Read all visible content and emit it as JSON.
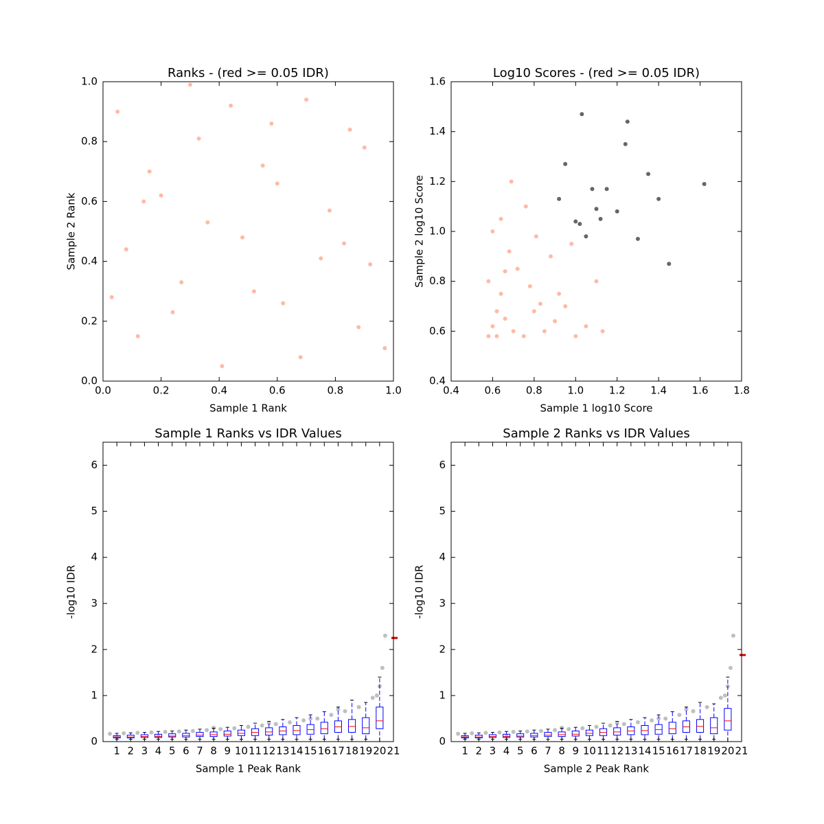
{
  "chart_data": [
    {
      "type": "scatter",
      "title": "Ranks - (red >= 0.05 IDR)",
      "xlabel": "Sample 1 Rank",
      "ylabel": "Sample 2 Rank",
      "xlim": [
        0,
        1
      ],
      "ylim": [
        0,
        1
      ],
      "xticks": [
        {
          "value": 0,
          "label": "0.0"
        },
        0.2,
        0.4,
        0.6,
        0.8,
        {
          "value": 1,
          "label": "1.0"
        }
      ],
      "yticks": [
        {
          "value": 0,
          "label": "0.0"
        },
        0.2,
        0.4,
        0.6,
        0.8,
        {
          "value": 1,
          "label": "1.0"
        }
      ],
      "series": [
        {
          "color": "#ff8c69",
          "x": [
            0.05,
            0.12,
            0.2,
            0.27,
            0.33,
            0.41,
            0.48,
            0.55,
            0.62,
            0.7,
            0.78,
            0.85,
            0.92,
            0.97,
            0.08,
            0.16,
            0.24,
            0.36,
            0.44,
            0.52,
            0.6,
            0.68,
            0.75,
            0.83,
            0.9,
            0.03,
            0.3,
            0.58,
            0.88,
            0.14
          ],
          "values": [
            0.9,
            0.15,
            0.62,
            0.33,
            0.81,
            0.05,
            0.48,
            0.72,
            0.26,
            0.94,
            0.57,
            0.84,
            0.39,
            0.11,
            0.44,
            0.7,
            0.23,
            0.53,
            0.92,
            0.3,
            0.66,
            0.08,
            0.41,
            0.46,
            0.78,
            0.28,
            0.99,
            0.86,
            0.18,
            0.6
          ]
        }
      ]
    },
    {
      "type": "scatter",
      "title": "Log10 Scores - (red >= 0.05 IDR)",
      "xlabel": "Sample 1 log10 Score",
      "ylabel": "Sample 2 log10 Score",
      "xlim": [
        0.4,
        1.8
      ],
      "ylim": [
        0.4,
        1.6
      ],
      "xticks": [
        0.4,
        0.6,
        0.8,
        {
          "value": 1,
          "label": "1.0"
        },
        1.2,
        1.4,
        1.6,
        1.8
      ],
      "yticks": [
        0.4,
        0.6,
        0.8,
        {
          "value": 1,
          "label": "1.0"
        },
        1.2,
        1.4,
        1.6
      ],
      "series": [
        {
          "color": "#ff8c69",
          "x": [
            0.58,
            0.6,
            0.62,
            0.64,
            0.66,
            0.68,
            0.58,
            0.62,
            0.66,
            0.7,
            0.75,
            0.8,
            0.85,
            0.9,
            0.72,
            0.78,
            0.83,
            0.6,
            0.64,
            0.88,
            0.95,
            1.0,
            1.05,
            1.1,
            0.98,
            0.76,
            0.69,
            0.81,
            0.92,
            1.13
          ],
          "values": [
            0.58,
            0.62,
            0.68,
            0.75,
            0.84,
            0.92,
            0.8,
            0.58,
            0.65,
            0.6,
            0.58,
            0.68,
            0.6,
            0.64,
            0.85,
            0.78,
            0.71,
            1.0,
            1.05,
            0.9,
            0.7,
            0.58,
            0.62,
            0.8,
            0.95,
            1.1,
            1.2,
            0.98,
            0.75,
            0.6
          ]
        },
        {
          "color": "#000000",
          "x": [
            0.92,
            0.95,
            1.0,
            1.03,
            1.05,
            1.08,
            1.12,
            1.15,
            1.2,
            1.25,
            1.3,
            1.35,
            1.4,
            1.45,
            1.62,
            1.02,
            1.1,
            1.24
          ],
          "values": [
            1.13,
            1.27,
            1.04,
            1.47,
            0.98,
            1.17,
            1.05,
            1.17,
            1.08,
            1.44,
            0.97,
            1.23,
            1.13,
            0.87,
            1.19,
            1.03,
            1.09,
            1.35
          ]
        }
      ]
    },
    {
      "type": "box",
      "title": "Sample 1 Ranks vs IDR Values",
      "xlabel": "Sample 1 Peak Rank",
      "ylabel": "-log10 IDR",
      "xlim": [
        0,
        21
      ],
      "ylim": [
        0,
        6.5
      ],
      "xticks": [
        1,
        2,
        3,
        4,
        5,
        6,
        7,
        8,
        9,
        10,
        11,
        12,
        13,
        14,
        15,
        16,
        17,
        18,
        19,
        20,
        21
      ],
      "yticks": [
        0,
        1,
        2,
        3,
        4,
        5,
        6
      ],
      "series": [
        {
          "color": "#000000",
          "x": [
            0.5,
            1.5,
            2.5,
            3.5,
            4.5,
            5.5,
            6.5,
            7.5,
            8.5,
            9.5,
            10.5,
            11.5,
            12.5,
            13.5,
            14.5,
            15.5,
            16.5,
            17.5,
            18.5,
            19.5,
            20.0,
            20.2,
            20.4,
            19.8,
            17,
            15,
            12,
            8,
            4,
            1
          ],
          "values": [
            0.17,
            0.18,
            0.19,
            0.2,
            0.21,
            0.22,
            0.23,
            0.25,
            0.27,
            0.29,
            0.32,
            0.35,
            0.38,
            0.42,
            0.46,
            0.5,
            0.58,
            0.66,
            0.75,
            0.95,
            1.2,
            1.6,
            2.3,
            1.0,
            0.7,
            0.5,
            0.4,
            0.3,
            0.12,
            0.1
          ]
        }
      ],
      "boxes": {
        "x": [
          1,
          2,
          3,
          4,
          5,
          6,
          7,
          8,
          9,
          10,
          11,
          12,
          13,
          14,
          15,
          16,
          17,
          18,
          19,
          20
        ],
        "q1": [
          0.08,
          0.08,
          0.09,
          0.09,
          0.1,
          0.1,
          0.11,
          0.11,
          0.12,
          0.13,
          0.13,
          0.14,
          0.15,
          0.15,
          0.16,
          0.17,
          0.2,
          0.2,
          0.17,
          0.28
        ],
        "median": [
          0.1,
          0.1,
          0.11,
          0.11,
          0.12,
          0.13,
          0.14,
          0.15,
          0.16,
          0.18,
          0.2,
          0.21,
          0.23,
          0.24,
          0.26,
          0.28,
          0.32,
          0.33,
          0.3,
          0.45
        ],
        "q3": [
          0.13,
          0.14,
          0.15,
          0.16,
          0.17,
          0.18,
          0.2,
          0.21,
          0.23,
          0.25,
          0.28,
          0.3,
          0.32,
          0.35,
          0.37,
          0.42,
          0.45,
          0.48,
          0.52,
          0.75
        ],
        "whislo": [
          0.05,
          0.05,
          0.05,
          0.05,
          0.05,
          0.05,
          0.05,
          0.05,
          0.05,
          0.05,
          0.05,
          0.05,
          0.05,
          0.05,
          0.05,
          0.05,
          0.05,
          0.05,
          0.05,
          0
        ],
        "whishi": [
          0.18,
          0.19,
          0.2,
          0.22,
          0.23,
          0.25,
          0.27,
          0.29,
          0.31,
          0.35,
          0.4,
          0.44,
          0.48,
          0.52,
          0.58,
          0.65,
          0.75,
          0.9,
          0.85,
          1.4
        ]
      },
      "marker": 2.25
    },
    {
      "type": "box",
      "title": "Sample 2 Ranks vs IDR Values",
      "xlabel": "Sample 2 Peak Rank",
      "ylabel": "-log10 IDR",
      "xlim": [
        0,
        21
      ],
      "ylim": [
        0,
        6.5
      ],
      "xticks": [
        1,
        2,
        3,
        4,
        5,
        6,
        7,
        8,
        9,
        10,
        11,
        12,
        13,
        14,
        15,
        16,
        17,
        18,
        19,
        20,
        21
      ],
      "yticks": [
        0,
        1,
        2,
        3,
        4,
        5,
        6
      ],
      "series": [
        {
          "color": "#000000",
          "x": [
            0.5,
            1.5,
            2.5,
            3.5,
            4.5,
            5.5,
            6.5,
            7.5,
            8.5,
            9.5,
            10.5,
            11.5,
            12.5,
            13.5,
            14.5,
            15.5,
            16.5,
            17.5,
            18.5,
            19.5,
            20.0,
            20.2,
            20.4,
            19.8,
            17,
            15,
            12,
            8,
            4,
            1
          ],
          "values": [
            0.17,
            0.18,
            0.19,
            0.2,
            0.21,
            0.22,
            0.23,
            0.25,
            0.27,
            0.29,
            0.32,
            0.35,
            0.38,
            0.42,
            0.46,
            0.5,
            0.58,
            0.66,
            0.75,
            0.95,
            1.2,
            1.6,
            2.3,
            1.0,
            0.7,
            0.5,
            0.4,
            0.3,
            0.12,
            0.1
          ]
        }
      ],
      "boxes": {
        "x": [
          1,
          2,
          3,
          4,
          5,
          6,
          7,
          8,
          9,
          10,
          11,
          12,
          13,
          14,
          15,
          16,
          17,
          18,
          19,
          20
        ],
        "q1": [
          0.08,
          0.08,
          0.09,
          0.09,
          0.1,
          0.1,
          0.11,
          0.11,
          0.12,
          0.13,
          0.13,
          0.14,
          0.15,
          0.15,
          0.16,
          0.17,
          0.2,
          0.2,
          0.17,
          0.25
        ],
        "median": [
          0.1,
          0.1,
          0.11,
          0.11,
          0.12,
          0.13,
          0.14,
          0.15,
          0.16,
          0.18,
          0.2,
          0.21,
          0.23,
          0.24,
          0.26,
          0.28,
          0.32,
          0.33,
          0.3,
          0.45
        ],
        "q3": [
          0.13,
          0.14,
          0.15,
          0.16,
          0.17,
          0.18,
          0.2,
          0.21,
          0.23,
          0.25,
          0.28,
          0.3,
          0.32,
          0.35,
          0.37,
          0.42,
          0.45,
          0.48,
          0.52,
          0.72
        ],
        "whislo": [
          0.05,
          0.05,
          0.05,
          0.05,
          0.05,
          0.05,
          0.05,
          0.05,
          0.05,
          0.05,
          0.05,
          0.05,
          0.05,
          0.05,
          0.05,
          0.05,
          0.05,
          0.05,
          0.05,
          0
        ],
        "whishi": [
          0.18,
          0.19,
          0.2,
          0.22,
          0.23,
          0.25,
          0.27,
          0.29,
          0.31,
          0.35,
          0.4,
          0.44,
          0.48,
          0.52,
          0.58,
          0.65,
          0.75,
          0.85,
          0.82,
          1.4
        ]
      },
      "marker": 1.88
    }
  ]
}
